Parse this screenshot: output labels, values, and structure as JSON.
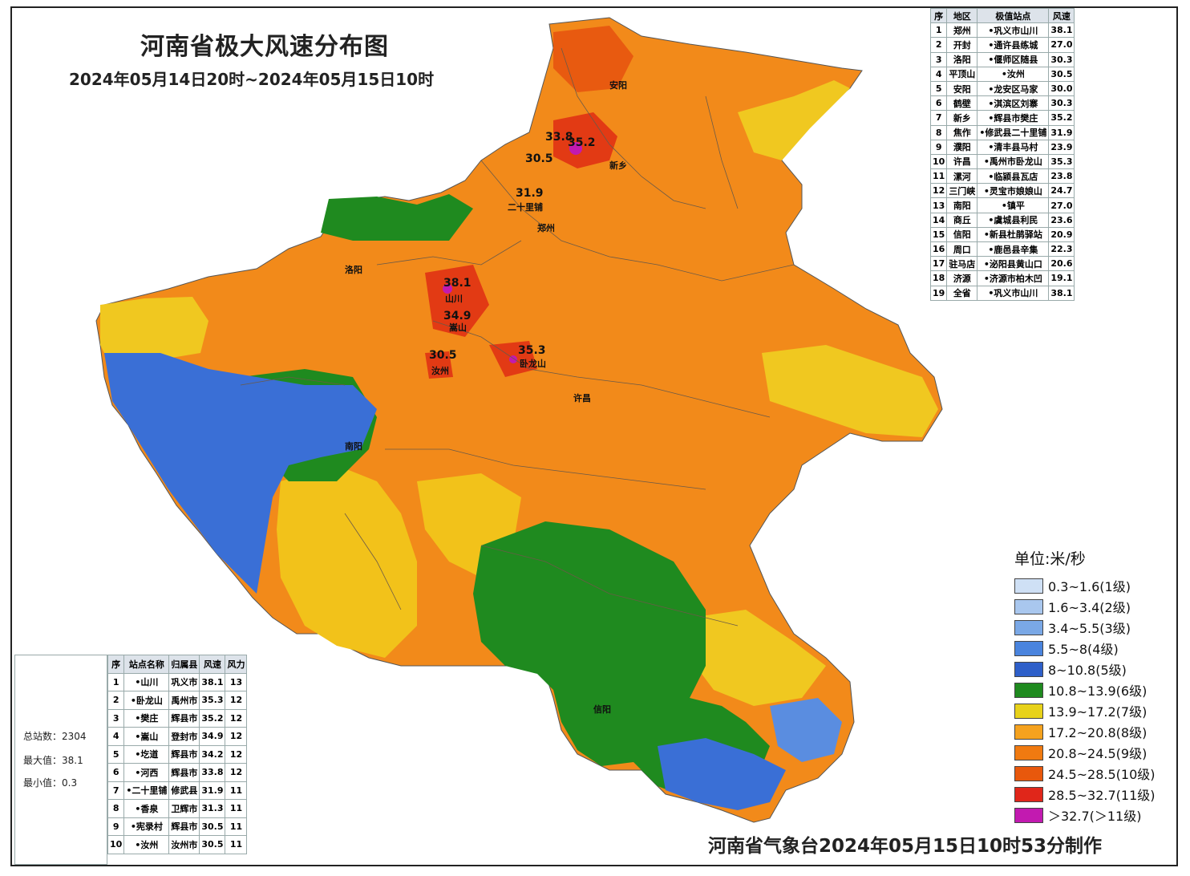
{
  "title": "河南省极大风速分布图",
  "subtitle": "2024年05月14日20时~2024年05月15日10时",
  "footer": "河南省气象台2024年05月15日10时53分制作",
  "city_table": {
    "headers": [
      "序",
      "地区",
      "极值站点",
      "风速"
    ],
    "rows": [
      [
        "1",
        "郑州",
        "•巩义市山川",
        "38.1"
      ],
      [
        "2",
        "开封",
        "•通许县练城",
        "27.0"
      ],
      [
        "3",
        "洛阳",
        "•偃师区随县",
        "30.3"
      ],
      [
        "4",
        "平顶山",
        "•汝州",
        "30.5"
      ],
      [
        "5",
        "安阳",
        "•龙安区马家",
        "30.0"
      ],
      [
        "6",
        "鹤壁",
        "•淇滨区刘寨",
        "30.3"
      ],
      [
        "7",
        "新乡",
        "•辉县市樊庄",
        "35.2"
      ],
      [
        "8",
        "焦作",
        "•修武县二十里铺",
        "31.9"
      ],
      [
        "9",
        "濮阳",
        "•清丰县马村",
        "23.9"
      ],
      [
        "10",
        "许昌",
        "•禹州市卧龙山",
        "35.3"
      ],
      [
        "11",
        "漯河",
        "•临颍县瓦店",
        "23.8"
      ],
      [
        "12",
        "三门峡",
        "•灵宝市娘娘山",
        "24.7"
      ],
      [
        "13",
        "南阳",
        "•镇平",
        "27.0"
      ],
      [
        "14",
        "商丘",
        "•虞城县利民",
        "23.6"
      ],
      [
        "15",
        "信阳",
        "•新县杜鹃驿站",
        "20.9"
      ],
      [
        "16",
        "周口",
        "•鹿邑县辛集",
        "22.3"
      ],
      [
        "17",
        "驻马店",
        "•泌阳县黄山口",
        "20.6"
      ],
      [
        "18",
        "济源",
        "•济源市柏木凹",
        "19.1"
      ],
      [
        "19",
        "全省",
        "•巩义市山川",
        "38.1"
      ]
    ]
  },
  "station_table": {
    "headers": [
      "序",
      "站点名称",
      "归属县",
      "风速",
      "风力"
    ],
    "rows": [
      [
        "1",
        "•山川",
        "巩义市",
        "38.1",
        "13"
      ],
      [
        "2",
        "•卧龙山",
        "禹州市",
        "35.3",
        "12"
      ],
      [
        "3",
        "•樊庄",
        "辉县市",
        "35.2",
        "12"
      ],
      [
        "4",
        "•嵩山",
        "登封市",
        "34.9",
        "12"
      ],
      [
        "5",
        "•圪道",
        "辉县市",
        "34.2",
        "12"
      ],
      [
        "6",
        "•河西",
        "辉县市",
        "33.8",
        "12"
      ],
      [
        "7",
        "•二十里铺",
        "修武县",
        "31.9",
        "11"
      ],
      [
        "8",
        "•香泉",
        "卫辉市",
        "31.3",
        "11"
      ],
      [
        "9",
        "•宪录村",
        "辉县市",
        "30.5",
        "11"
      ],
      [
        "10",
        "•汝州",
        "汝州市",
        "30.5",
        "11"
      ]
    ]
  },
  "stats": {
    "total": "总站数：2304",
    "max": "最大值：38.1",
    "min": "最小值：0.3"
  },
  "legend": {
    "title": "单位:米/秒",
    "items": [
      {
        "label": "0.3~1.6(1级)",
        "color": "#cfe0f5"
      },
      {
        "label": "1.6~3.4(2级)",
        "color": "#a9c7ee"
      },
      {
        "label": "3.4~5.5(3级)",
        "color": "#7aa8e6"
      },
      {
        "label": "5.5~8(4级)",
        "color": "#4a84de"
      },
      {
        "label": "8~10.8(5级)",
        "color": "#2e5fc9"
      },
      {
        "label": "10.8~13.9(6级)",
        "color": "#1f8a1f"
      },
      {
        "label": "13.9~17.2(7级)",
        "color": "#e8d21a"
      },
      {
        "label": "17.2~20.8(8级)",
        "color": "#f5a21e"
      },
      {
        "label": "20.8~24.5(9级)",
        "color": "#f07a10"
      },
      {
        "label": "24.5~28.5(10级)",
        "color": "#e8580c"
      },
      {
        "label": "28.5~32.7(11级)",
        "color": "#e0261a"
      },
      {
        "label": "＞32.7(＞11级)",
        "color": "#c21ab0"
      }
    ]
  },
  "map_labels": {
    "hot_values": [
      "33.8",
      "35.2",
      "30.5",
      "31.9",
      "38.1",
      "34.9",
      "30.5",
      "35.3"
    ],
    "places": [
      "嵩山",
      "汝州",
      "卧龙山",
      "二十里铺",
      "山川",
      "郑州",
      "许昌",
      "南阳",
      "信阳",
      "洛阳",
      "安阳",
      "新乡"
    ]
  }
}
